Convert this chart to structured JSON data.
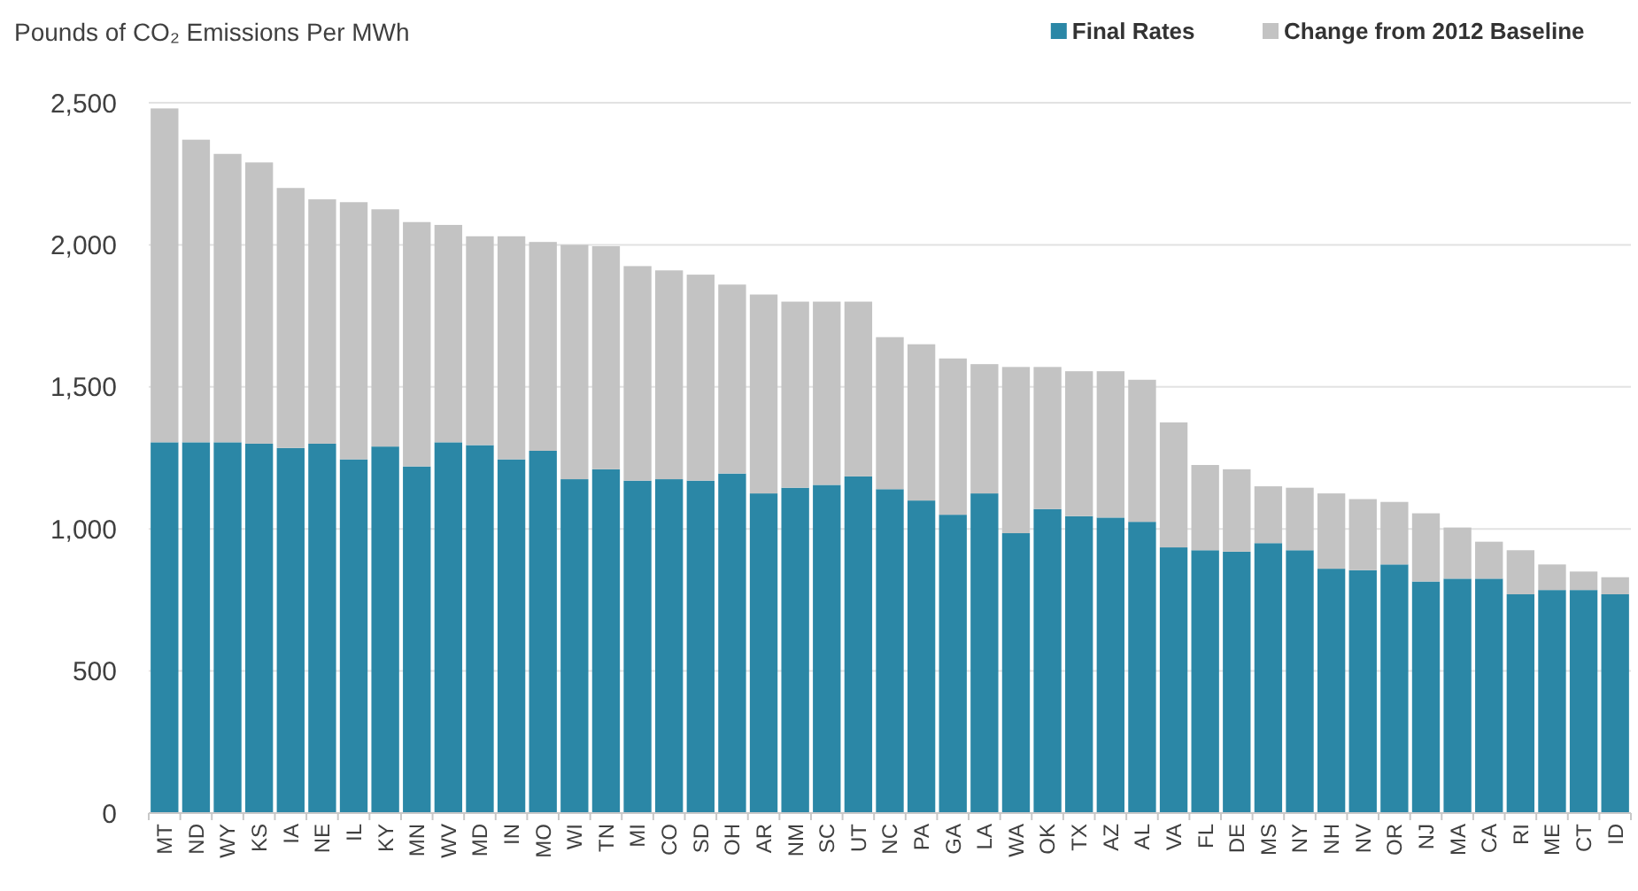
{
  "chart_data": {
    "type": "bar",
    "ylabel": "Pounds of CO₂ Emissions Per MWh",
    "stacked": true,
    "grid": "y",
    "legend": "top right",
    "categories": [
      "MT",
      "ND",
      "WY",
      "KS",
      "IA",
      "NE",
      "IL",
      "KY",
      "MN",
      "WV",
      "MD",
      "IN",
      "MO",
      "WI",
      "TN",
      "MI",
      "CO",
      "SD",
      "OH",
      "AR",
      "NM",
      "SC",
      "UT",
      "NC",
      "PA",
      "GA",
      "LA",
      "WA",
      "OK",
      "TX",
      "AZ",
      "AL",
      "VA",
      "FL",
      "DE",
      "MS",
      "NY",
      "NH",
      "NV",
      "OR",
      "NJ",
      "MA",
      "CA",
      "RI",
      "ME",
      "CT",
      "ID"
    ],
    "series": [
      {
        "name": "Final Rates",
        "color": "#2b87a6",
        "values": [
          1305,
          1305,
          1305,
          1300,
          1285,
          1300,
          1245,
          1290,
          1220,
          1305,
          1295,
          1245,
          1275,
          1175,
          1210,
          1170,
          1175,
          1170,
          1195,
          1125,
          1145,
          1155,
          1185,
          1140,
          1100,
          1050,
          1125,
          985,
          1070,
          1045,
          1040,
          1025,
          935,
          925,
          920,
          950,
          925,
          860,
          855,
          875,
          815,
          825,
          825,
          770,
          785,
          785,
          770
        ]
      },
      {
        "name": "Change from 2012 Baseline",
        "color": "#c3c3c3",
        "values": [
          1175,
          1065,
          1015,
          990,
          915,
          860,
          905,
          835,
          860,
          765,
          735,
          785,
          735,
          825,
          785,
          755,
          735,
          725,
          665,
          700,
          655,
          645,
          615,
          535,
          550,
          550,
          455,
          585,
          500,
          510,
          515,
          500,
          440,
          300,
          290,
          200,
          220,
          265,
          250,
          220,
          240,
          180,
          130,
          155,
          90,
          65,
          60
        ]
      }
    ],
    "ylim": [
      0,
      2500
    ],
    "yticks": [
      {
        "value": 0,
        "label": "0"
      },
      {
        "value": 500,
        "label": "500"
      },
      {
        "value": 1000,
        "label": "1,000"
      },
      {
        "value": 1500,
        "label": "1,500"
      },
      {
        "value": 2000,
        "label": "2,000"
      },
      {
        "value": 2500,
        "label": "2,500"
      }
    ]
  }
}
